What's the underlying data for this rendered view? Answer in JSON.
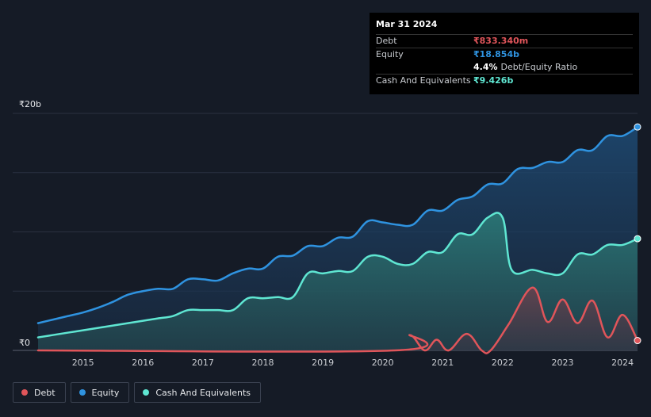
{
  "tooltip": {
    "date": "Mar 31 2024",
    "debt_label": "Debt",
    "debt_value": "₹833.340m",
    "equity_label": "Equity",
    "equity_value": "₹18.854b",
    "ratio_value": "4.4%",
    "ratio_label": "Debt/Equity Ratio",
    "cash_label": "Cash And Equivalents",
    "cash_value": "₹9.426b"
  },
  "legend": [
    {
      "label": "Debt",
      "color": "#e0555a"
    },
    {
      "label": "Equity",
      "color": "#2f93e0"
    },
    {
      "label": "Cash And Equivalents",
      "color": "#5fe6d2"
    }
  ],
  "chart_data": {
    "type": "area",
    "y_unit": "₹ billions",
    "ylim": [
      0,
      20
    ],
    "y_tick_labels": [
      {
        "value": 20,
        "label": "₹20b"
      },
      {
        "value": 0,
        "label": "₹0"
      }
    ],
    "y_gridlines": [
      0,
      5,
      10,
      15,
      20
    ],
    "x_tick_labels": [
      "2015",
      "2016",
      "2017",
      "2018",
      "2019",
      "2020",
      "2021",
      "2022",
      "2023",
      "2024"
    ],
    "xlim": [
      2014.25,
      2024.25
    ],
    "series": [
      {
        "name": "Equity",
        "color": "#2f93e0",
        "points": [
          [
            2014.25,
            2.3
          ],
          [
            2014.5,
            2.6
          ],
          [
            2014.75,
            2.9
          ],
          [
            2015.0,
            3.2
          ],
          [
            2015.25,
            3.6
          ],
          [
            2015.5,
            4.1
          ],
          [
            2015.75,
            4.7
          ],
          [
            2016.0,
            5.0
          ],
          [
            2016.25,
            5.2
          ],
          [
            2016.5,
            5.2
          ],
          [
            2016.75,
            6.0
          ],
          [
            2017.0,
            6.0
          ],
          [
            2017.25,
            5.9
          ],
          [
            2017.5,
            6.5
          ],
          [
            2017.75,
            6.9
          ],
          [
            2018.0,
            6.9
          ],
          [
            2018.25,
            7.9
          ],
          [
            2018.5,
            8.0
          ],
          [
            2018.75,
            8.8
          ],
          [
            2019.0,
            8.8
          ],
          [
            2019.25,
            9.5
          ],
          [
            2019.5,
            9.6
          ],
          [
            2019.75,
            10.9
          ],
          [
            2020.0,
            10.8
          ],
          [
            2020.25,
            10.6
          ],
          [
            2020.5,
            10.6
          ],
          [
            2020.75,
            11.8
          ],
          [
            2021.0,
            11.8
          ],
          [
            2021.25,
            12.7
          ],
          [
            2021.5,
            13.0
          ],
          [
            2021.75,
            14.0
          ],
          [
            2022.0,
            14.1
          ],
          [
            2022.25,
            15.3
          ],
          [
            2022.5,
            15.4
          ],
          [
            2022.75,
            15.9
          ],
          [
            2023.0,
            15.9
          ],
          [
            2023.25,
            16.9
          ],
          [
            2023.5,
            16.9
          ],
          [
            2023.75,
            18.1
          ],
          [
            2024.0,
            18.1
          ],
          [
            2024.25,
            18.854
          ]
        ]
      },
      {
        "name": "Cash And Equivalents",
        "color": "#5fe6d2",
        "points": [
          [
            2014.25,
            1.1
          ],
          [
            2014.5,
            1.3
          ],
          [
            2014.75,
            1.5
          ],
          [
            2015.0,
            1.7
          ],
          [
            2015.25,
            1.9
          ],
          [
            2015.5,
            2.1
          ],
          [
            2015.75,
            2.3
          ],
          [
            2016.0,
            2.5
          ],
          [
            2016.25,
            2.7
          ],
          [
            2016.5,
            2.9
          ],
          [
            2016.75,
            3.4
          ],
          [
            2017.0,
            3.4
          ],
          [
            2017.25,
            3.4
          ],
          [
            2017.5,
            3.4
          ],
          [
            2017.75,
            4.4
          ],
          [
            2018.0,
            4.4
          ],
          [
            2018.25,
            4.5
          ],
          [
            2018.5,
            4.5
          ],
          [
            2018.75,
            6.5
          ],
          [
            2019.0,
            6.5
          ],
          [
            2019.25,
            6.7
          ],
          [
            2019.5,
            6.7
          ],
          [
            2019.75,
            7.9
          ],
          [
            2020.0,
            7.9
          ],
          [
            2020.25,
            7.3
          ],
          [
            2020.5,
            7.3
          ],
          [
            2020.75,
            8.3
          ],
          [
            2021.0,
            8.3
          ],
          [
            2021.25,
            9.8
          ],
          [
            2021.5,
            9.8
          ],
          [
            2021.75,
            11.2
          ],
          [
            2022.0,
            11.2
          ],
          [
            2022.15,
            6.8
          ],
          [
            2022.5,
            6.8
          ],
          [
            2022.75,
            6.5
          ],
          [
            2023.0,
            6.5
          ],
          [
            2023.25,
            8.1
          ],
          [
            2023.5,
            8.1
          ],
          [
            2023.75,
            8.9
          ],
          [
            2024.0,
            8.9
          ],
          [
            2024.25,
            9.426
          ]
        ]
      },
      {
        "name": "Debt",
        "color": "#e0555a",
        "points": [
          [
            2014.25,
            0
          ],
          [
            2020.2,
            0
          ],
          [
            2020.45,
            1.3
          ],
          [
            2020.7,
            0
          ],
          [
            2020.9,
            0.9
          ],
          [
            2021.1,
            0
          ],
          [
            2021.4,
            1.4
          ],
          [
            2021.65,
            0
          ],
          [
            2021.8,
            0
          ],
          [
            2022.1,
            2.2
          ],
          [
            2022.5,
            5.3
          ],
          [
            2022.75,
            2.4
          ],
          [
            2023.0,
            4.3
          ],
          [
            2023.25,
            2.3
          ],
          [
            2023.5,
            4.2
          ],
          [
            2023.75,
            1.1
          ],
          [
            2024.0,
            3.0
          ],
          [
            2024.25,
            0.833
          ]
        ]
      }
    ]
  }
}
